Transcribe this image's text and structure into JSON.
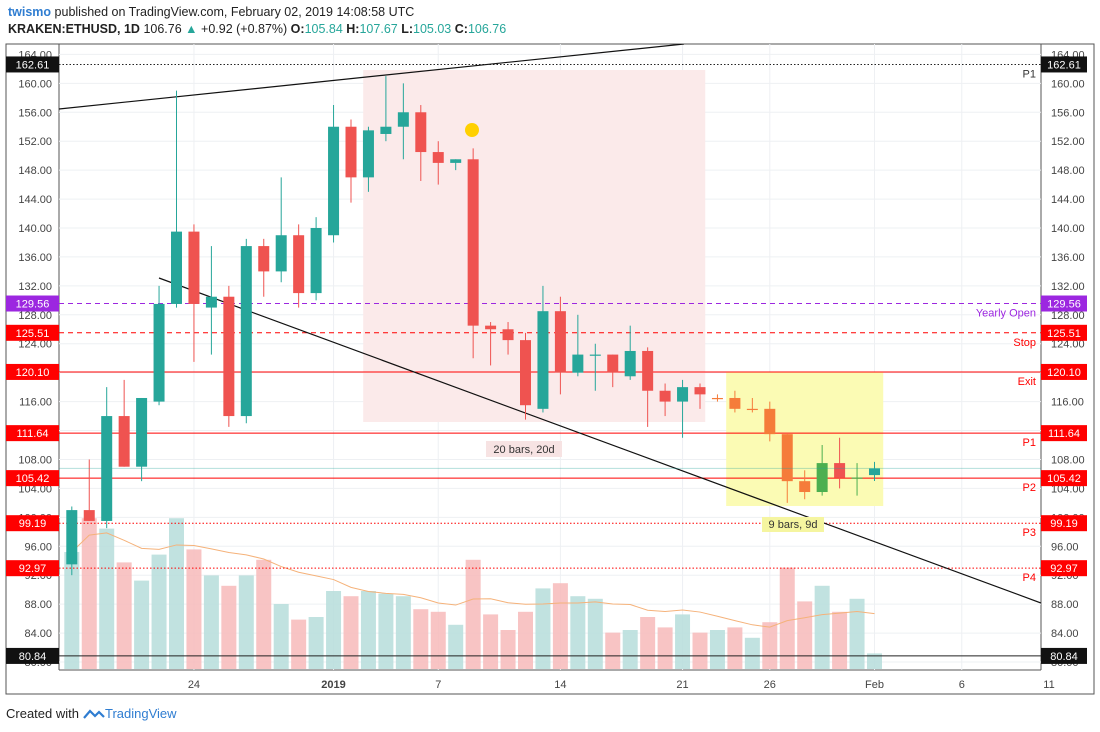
{
  "header": {
    "author": "twismo",
    "published_text": "published on TradingView.com, February 02, 2019 14:08:58 UTC",
    "symbol": "KRAKEN:ETHUSD, 1D",
    "last": "106.76",
    "change_arrow": "▲",
    "change": "+0.92 (+0.87%)",
    "o_label": "O:",
    "o": "105.84",
    "h_label": "H:",
    "h": "107.67",
    "l_label": "L:",
    "l": "105.03",
    "c_label": "C:",
    "c": "106.76"
  },
  "footer": {
    "created_with": "Created with",
    "brand": "TradingView"
  },
  "chart_data": {
    "type": "candlestick",
    "y_range": [
      80,
      165
    ],
    "y_ticks": [
      "164.00",
      "160.00",
      "156.00",
      "152.00",
      "148.00",
      "144.00",
      "140.00",
      "136.00",
      "132.00",
      "128.00",
      "124.00",
      "120.00",
      "116.00",
      "112.00",
      "108.00",
      "104.00",
      "100.00",
      "96.00",
      "92.00",
      "88.00",
      "84.00",
      "80.00"
    ],
    "x_tick_labels": [
      {
        "label": "24",
        "day": 7
      },
      {
        "label": "2019",
        "day": 15
      },
      {
        "label": "7",
        "day": 21
      },
      {
        "label": "14",
        "day": 28
      },
      {
        "label": "21",
        "day": 35
      },
      {
        "label": "26",
        "day": 40
      },
      {
        "label": "Feb",
        "day": 46
      },
      {
        "label": "6",
        "day": 51
      },
      {
        "label": "11",
        "day": 56
      }
    ],
    "candles": [
      {
        "o": 93.5,
        "h": 101.5,
        "l": 92.0,
        "c": 101.0
      },
      {
        "o": 101.0,
        "h": 108.0,
        "l": 99.5,
        "c": 99.5
      },
      {
        "o": 99.5,
        "h": 118.0,
        "l": 98.5,
        "c": 114.0
      },
      {
        "o": 114.0,
        "h": 119.0,
        "l": 107.0,
        "c": 107.0
      },
      {
        "o": 107.0,
        "h": 116.5,
        "l": 105.0,
        "c": 116.5
      },
      {
        "o": 116.0,
        "h": 132.0,
        "l": 115.5,
        "c": 129.5
      },
      {
        "o": 129.5,
        "h": 159.0,
        "l": 129.0,
        "c": 139.5
      },
      {
        "o": 139.5,
        "h": 140.5,
        "l": 121.5,
        "c": 129.5
      },
      {
        "o": 129.0,
        "h": 137.5,
        "l": 122.5,
        "c": 130.5
      },
      {
        "o": 130.5,
        "h": 132.0,
        "l": 112.5,
        "c": 114.0
      },
      {
        "o": 114.0,
        "h": 138.5,
        "l": 113.0,
        "c": 137.5
      },
      {
        "o": 137.5,
        "h": 138.5,
        "l": 130.5,
        "c": 134.0
      },
      {
        "o": 134.0,
        "h": 147.0,
        "l": 132.5,
        "c": 139.0
      },
      {
        "o": 139.0,
        "h": 140.5,
        "l": 129.0,
        "c": 131.0
      },
      {
        "o": 131.0,
        "h": 141.5,
        "l": 130.0,
        "c": 140.0
      },
      {
        "o": 139.0,
        "h": 157.0,
        "l": 138.0,
        "c": 154.0
      },
      {
        "o": 154.0,
        "h": 155.0,
        "l": 143.5,
        "c": 147.0
      },
      {
        "o": 147.0,
        "h": 154.0,
        "l": 145.0,
        "c": 153.5
      },
      {
        "o": 153.0,
        "h": 161.0,
        "l": 152.0,
        "c": 154.0
      },
      {
        "o": 154.0,
        "h": 160.0,
        "l": 149.5,
        "c": 156.0
      },
      {
        "o": 156.0,
        "h": 157.0,
        "l": 146.5,
        "c": 150.5
      },
      {
        "o": 150.5,
        "h": 152.0,
        "l": 146.0,
        "c": 149.0
      },
      {
        "o": 149.0,
        "h": 149.5,
        "l": 148.0,
        "c": 149.5
      },
      {
        "o": 149.5,
        "h": 151.0,
        "l": 122.0,
        "c": 126.5
      },
      {
        "o": 126.5,
        "h": 127.0,
        "l": 121.0,
        "c": 126.0
      },
      {
        "o": 126.0,
        "h": 127.0,
        "l": 122.5,
        "c": 124.5
      },
      {
        "o": 124.5,
        "h": 125.5,
        "l": 113.5,
        "c": 115.5
      },
      {
        "o": 115.0,
        "h": 132.0,
        "l": 114.5,
        "c": 128.5
      },
      {
        "o": 128.5,
        "h": 130.5,
        "l": 117.0,
        "c": 120.0
      },
      {
        "o": 120.0,
        "h": 128.0,
        "l": 119.5,
        "c": 122.5
      },
      {
        "o": 122.5,
        "h": 124.0,
        "l": 117.5,
        "c": 122.5
      },
      {
        "o": 122.5,
        "h": 122.5,
        "l": 118.0,
        "c": 120.0
      },
      {
        "o": 119.5,
        "h": 126.5,
        "l": 119.0,
        "c": 123.0
      },
      {
        "o": 123.0,
        "h": 123.5,
        "l": 112.5,
        "c": 117.5
      },
      {
        "o": 117.5,
        "h": 118.5,
        "l": 114.0,
        "c": 116.0
      },
      {
        "o": 116.0,
        "h": 119.0,
        "l": 111.0,
        "c": 118.0
      },
      {
        "o": 118.0,
        "h": 118.5,
        "l": 115.0,
        "c": 117.0
      },
      {
        "o": 116.5,
        "h": 117.0,
        "l": 116.0,
        "c": 116.5
      },
      {
        "o": 116.5,
        "h": 117.5,
        "l": 114.5,
        "c": 115.0
      },
      {
        "o": 115.0,
        "h": 116.5,
        "l": 114.5,
        "c": 115.0
      },
      {
        "o": 115.0,
        "h": 116.0,
        "l": 110.5,
        "c": 111.5
      },
      {
        "o": 111.5,
        "h": 111.5,
        "l": 102.0,
        "c": 105.0
      },
      {
        "o": 105.0,
        "h": 106.5,
        "l": 102.5,
        "c": 103.5
      },
      {
        "o": 103.5,
        "h": 110.0,
        "l": 103.0,
        "c": 107.5
      },
      {
        "o": 107.5,
        "h": 111.0,
        "l": 104.0,
        "c": 105.5
      },
      {
        "o": 105.5,
        "h": 107.5,
        "l": 103.0,
        "c": 105.5
      },
      {
        "o": 105.84,
        "h": 107.67,
        "l": 105.03,
        "c": 106.76
      }
    ],
    "volume": [
      0.45,
      0.58,
      0.54,
      0.41,
      0.34,
      0.44,
      0.58,
      0.46,
      0.36,
      0.32,
      0.36,
      0.42,
      0.25,
      0.19,
      0.2,
      0.3,
      0.28,
      0.3,
      0.29,
      0.28,
      0.23,
      0.22,
      0.17,
      0.42,
      0.21,
      0.15,
      0.22,
      0.31,
      0.33,
      0.28,
      0.27,
      0.14,
      0.15,
      0.2,
      0.16,
      0.21,
      0.14,
      0.15,
      0.16,
      0.12,
      0.18,
      0.39,
      0.26,
      0.32,
      0.22,
      0.27,
      0.06
    ],
    "horizontal_levels": [
      {
        "label": "162.61",
        "price": 162.61,
        "style": "dotted",
        "color": "#222222",
        "tag": "P1"
      },
      {
        "label": "129.56",
        "price": 129.56,
        "style": "dashed",
        "color": "#9c27e0",
        "tag": "Yearly Open"
      },
      {
        "label": "125.51",
        "price": 125.51,
        "style": "dashed",
        "color": "#ff0000",
        "tag": "Stop"
      },
      {
        "label": "120.10",
        "price": 120.1,
        "style": "solid",
        "color": "#ff0000",
        "tag": "Exit"
      },
      {
        "label": "111.64",
        "price": 111.64,
        "style": "solid",
        "color": "#ff0000",
        "tag": "P1"
      },
      {
        "label": "105.42",
        "price": 105.42,
        "style": "solid",
        "color": "#ff0000",
        "tag": "P2"
      },
      {
        "label": "99.19",
        "price": 99.19,
        "style": "dotted",
        "color": "#ff0000",
        "tag": "P3"
      },
      {
        "label": "92.97",
        "price": 92.97,
        "style": "dotted",
        "color": "#ff0000",
        "tag": "P4"
      },
      {
        "label": "80.84",
        "price": 80.84,
        "style": "solid",
        "color": "#222222",
        "tag": ""
      }
    ],
    "range_labels": {
      "pink": "20 bars, 20d",
      "yellow": "9 bars, 9d"
    },
    "colors": {
      "up": "#26a69a",
      "down": "#ef5350",
      "orange": "#f57c3a",
      "green": "#4caf50",
      "pink_zone": "#fbeaea",
      "yellow_zone": "#fbfbb4",
      "purple": "#9c27e0"
    }
  }
}
